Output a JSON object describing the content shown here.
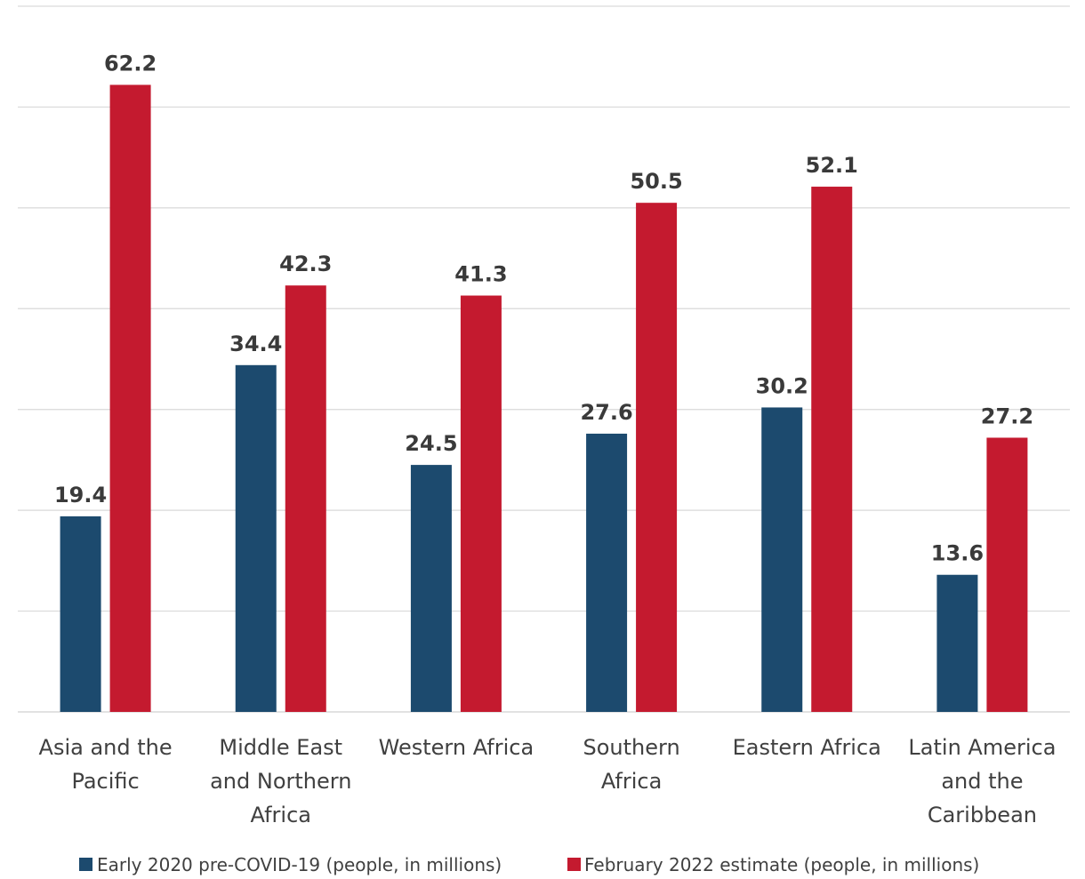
{
  "chart_data": {
    "type": "bar",
    "categories": [
      [
        "Asia and the",
        "Pacific"
      ],
      [
        "Middle East",
        "and Northern",
        "Africa"
      ],
      [
        "Western Africa"
      ],
      [
        "Southern",
        "Africa"
      ],
      [
        "Eastern Africa"
      ],
      [
        "Latin America",
        "and the",
        "Caribbean"
      ]
    ],
    "series": [
      {
        "name": "Early 2020 pre-COVID-19 (people, in millions)",
        "color": "#1c4a6e",
        "values": [
          19.4,
          34.4,
          24.5,
          27.6,
          30.2,
          13.6
        ]
      },
      {
        "name": "February 2022 estimate (people, in millions)",
        "color": "#c41a2f",
        "values": [
          62.2,
          42.3,
          41.3,
          50.5,
          52.1,
          27.2
        ]
      }
    ],
    "ylim": [
      0,
      70
    ],
    "ytick_step": 10,
    "grid": true,
    "gridline_color": "#d9d9d9",
    "legend_position": "bottom",
    "title": "",
    "xlabel": "",
    "ylabel": ""
  }
}
